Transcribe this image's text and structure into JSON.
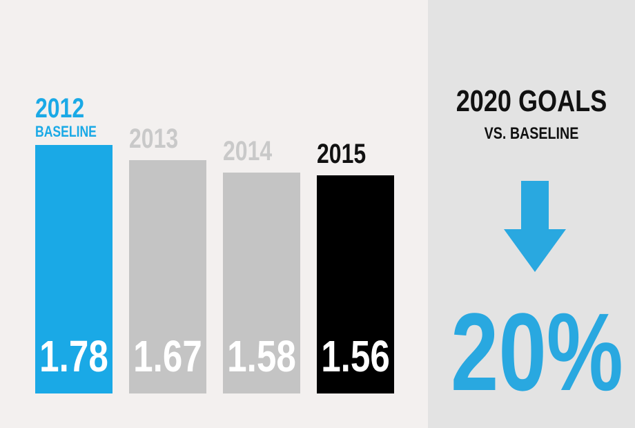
{
  "chart_data": {
    "type": "bar",
    "categories": [
      "2012",
      "2013",
      "2014",
      "2015"
    ],
    "category_sublabels": [
      "BASELINE",
      "",
      "",
      ""
    ],
    "values": [
      1.78,
      1.67,
      1.58,
      1.56
    ],
    "value_labels": [
      "1.78",
      "1.67",
      "1.58",
      "1.56"
    ],
    "colors": [
      "#1aa9e6",
      "#c4c4c4",
      "#c4c4c4",
      "#000000"
    ],
    "label_colors": [
      "#1aa9e6",
      "#c9c9c9",
      "#c9c9c9",
      "#111111"
    ],
    "ylim": [
      0,
      1.78
    ],
    "grid": false,
    "title": "",
    "xlabel": "",
    "ylabel": ""
  },
  "goals": {
    "title": "2020 GOALS",
    "subtitle": "VS. BASELINE",
    "icon": "down-arrow-icon",
    "value": "20%",
    "color": "#29a8e0"
  }
}
